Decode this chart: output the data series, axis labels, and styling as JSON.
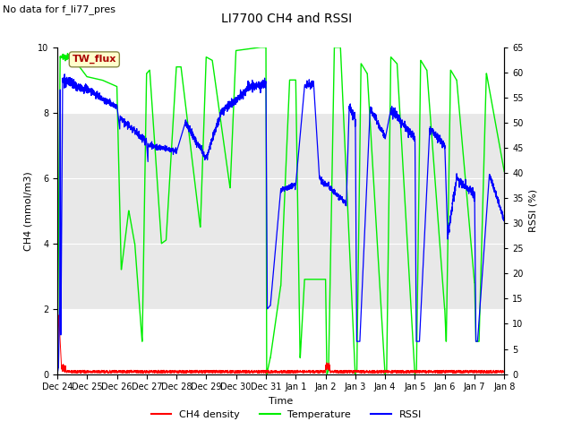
{
  "title": "LI7700 CH4 and RSSI",
  "subtitle": "No data for f_li77_pres",
  "xlabel": "Time",
  "ylabel_left": "CH4 (mmol/m3)",
  "ylabel_right": "RSSI (%)",
  "annotation": "TW_flux",
  "x_tick_labels": [
    "Dec 24",
    "Dec 25",
    "Dec 26",
    "Dec 27",
    "Dec 28",
    "Dec 29",
    "Dec 30",
    "Dec 31",
    "Jan 1",
    "Jan 2",
    "Jan 3",
    "Jan 4",
    "Jan 5",
    "Jan 6",
    "Jan 7",
    "Jan 8"
  ],
  "ylim_left": [
    0,
    10
  ],
  "ylim_right": [
    0,
    65
  ],
  "yticks_left": [
    0,
    2,
    4,
    6,
    8,
    10
  ],
  "yticks_right": [
    0,
    5,
    10,
    15,
    20,
    25,
    30,
    35,
    40,
    45,
    50,
    55,
    60,
    65
  ],
  "bg_color": "#ffffff",
  "shaded_low": 2.0,
  "shaded_high": 8.0,
  "shaded_color": "#e8e8e8",
  "legend_items": [
    {
      "label": "CH4 density",
      "color": "#ff0000"
    },
    {
      "label": "Temperature",
      "color": "#00ee00"
    },
    {
      "label": "RSSI",
      "color": "#0000ff"
    }
  ],
  "annotation_box_facecolor": "#ffffcc",
  "annotation_text_color": "#aa0000",
  "annotation_border_color": "#888844",
  "title_fontsize": 10,
  "subtitle_fontsize": 8,
  "axis_label_fontsize": 8,
  "tick_fontsize": 7,
  "legend_fontsize": 8
}
